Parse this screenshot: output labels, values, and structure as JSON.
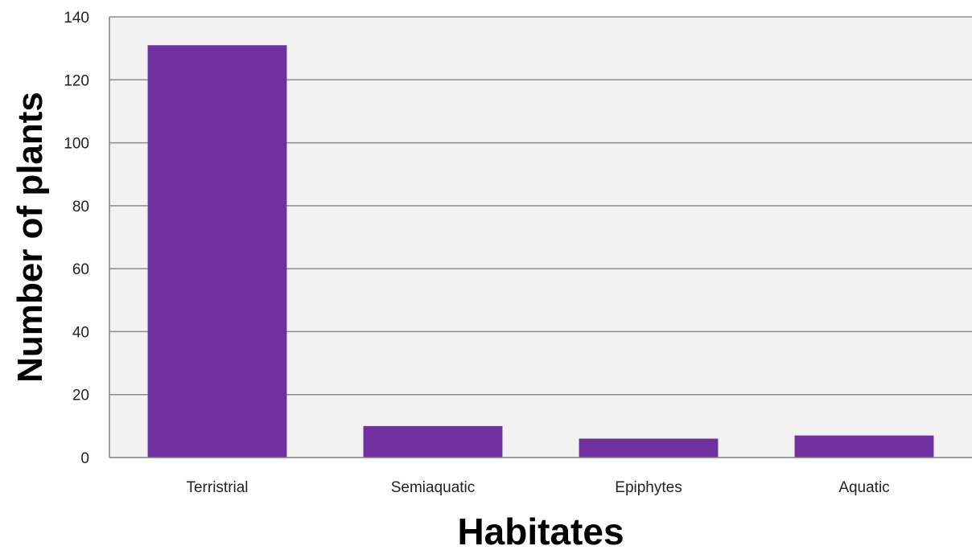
{
  "chart_data": {
    "type": "bar",
    "title": "",
    "xlabel": "Habitates",
    "ylabel": "Number of plants",
    "categories": [
      "Terristrial",
      "Semiaquatic",
      "Epiphytes",
      "Aquatic"
    ],
    "series": [
      {
        "values": [
          131,
          10,
          6,
          7
        ]
      }
    ],
    "ylim": [
      0,
      140
    ],
    "yticks": [
      0,
      20,
      40,
      60,
      80,
      100,
      120,
      140
    ],
    "grid": true,
    "legend": "none",
    "colors": {
      "bar": "#7030a0",
      "plot_background": "#f2f2f2",
      "gridline": "#8c8c8c",
      "axis": "#7f7f7f"
    }
  }
}
